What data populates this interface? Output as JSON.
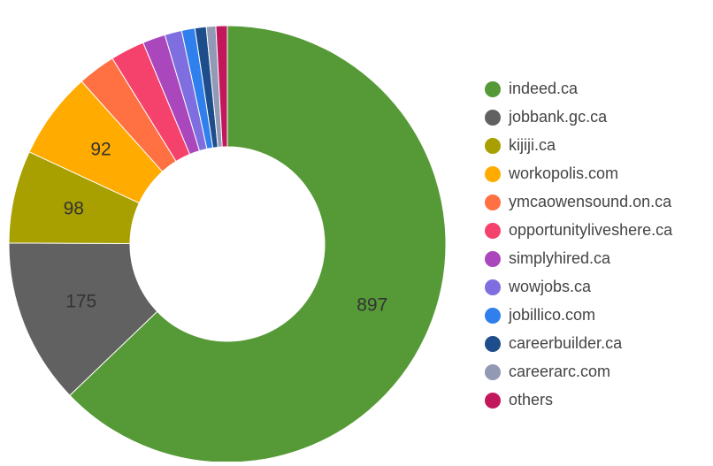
{
  "chart_data": {
    "type": "donut",
    "categories": [
      "indeed.ca",
      "jobbank.gc.ca",
      "kijiji.ca",
      "workopolis.com",
      "ymcaowensound.on.ca",
      "opportunityliveshere.ca",
      "simplyhired.ca",
      "wowjobs.ca",
      "jobillico.com",
      "careerbuilder.ca",
      "careerarc.com",
      "others"
    ],
    "values": [
      897,
      175,
      98,
      92,
      40,
      36,
      24,
      18,
      14,
      12,
      10,
      12
    ],
    "colors": [
      "#559a36",
      "#616161",
      "#a8a000",
      "#ffab00",
      "#ff7043",
      "#f5426c",
      "#ab47bc",
      "#7e6ee0",
      "#2f80ed",
      "#1e4d8c",
      "#9199b5",
      "#c2185b"
    ],
    "legend": "right"
  }
}
